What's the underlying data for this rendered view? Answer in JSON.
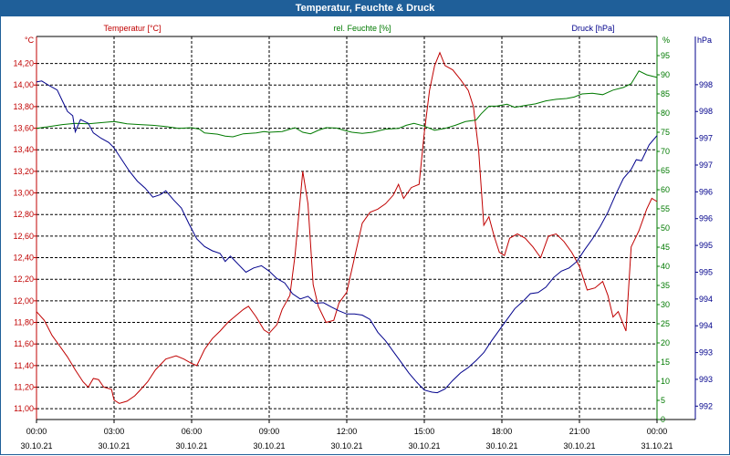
{
  "window": {
    "title": "Temperatur, Feuchte & Druck"
  },
  "colors": {
    "temperature": "#c00000",
    "humidity": "#007a00",
    "pressure": "#00008b",
    "grid": "#000000",
    "title_bar": "#1f5f99"
  },
  "chart_data": {
    "type": "line",
    "title": "Temperatur, Feuchte & Druck",
    "x": {
      "range_hours": [
        0,
        24
      ],
      "ticks": [
        {
          "h": 0,
          "time": "00:00",
          "date": "30.10.21"
        },
        {
          "h": 3,
          "time": "03:00",
          "date": "30.10.21"
        },
        {
          "h": 6,
          "time": "06:00",
          "date": "30.10.21"
        },
        {
          "h": 9,
          "time": "09:00",
          "date": "30.10.21"
        },
        {
          "h": 12,
          "time": "12:00",
          "date": "30.10.21"
        },
        {
          "h": 15,
          "time": "15:00",
          "date": "30.10.21"
        },
        {
          "h": 18,
          "time": "18:00",
          "date": "30.10.21"
        },
        {
          "h": 21,
          "time": "21:00",
          "date": "30.10.21"
        },
        {
          "h": 24,
          "time": "00:00",
          "date": "31.10.21"
        }
      ]
    },
    "axes": {
      "temperature": {
        "label": "Temperatur [°C]",
        "unit": "°C",
        "ylim": [
          10.9,
          14.45
        ],
        "ticks": [
          "11,00",
          "11,20",
          "11,40",
          "11,60",
          "11,80",
          "12,00",
          "12,20",
          "12,40",
          "12,60",
          "12,80",
          "13,00",
          "13,20",
          "13,40",
          "13,60",
          "13,80",
          "14,00",
          "14,20"
        ],
        "tick_values": [
          11.0,
          11.2,
          11.4,
          11.6,
          11.8,
          12.0,
          12.2,
          12.4,
          12.6,
          12.8,
          13.0,
          13.2,
          13.4,
          13.6,
          13.8,
          14.0,
          14.2
        ]
      },
      "humidity": {
        "label": "rel. Feuchte [%]",
        "unit": "%",
        "ylim": [
          0,
          100
        ],
        "ticks": [
          "0",
          "5",
          "10",
          "15",
          "20",
          "25",
          "30",
          "35",
          "40",
          "45",
          "50",
          "55",
          "60",
          "65",
          "70",
          "75",
          "80",
          "85",
          "90",
          "95"
        ],
        "tick_values": [
          0,
          5,
          10,
          15,
          20,
          25,
          30,
          35,
          40,
          45,
          50,
          55,
          60,
          65,
          70,
          75,
          80,
          85,
          90,
          95
        ]
      },
      "pressure": {
        "label": "Druck [hPa]",
        "unit": "hPa",
        "ylim": [
          991.75,
          998.9
        ],
        "ticks": [
          "992",
          "993",
          "993",
          "994",
          "994",
          "995",
          "995",
          "996",
          "996",
          "997",
          "997",
          "998",
          "998"
        ],
        "tick_values": [
          992.0,
          992.5,
          993.0,
          993.5,
          994.0,
          994.5,
          995.0,
          995.5,
          996.0,
          996.5,
          997.0,
          997.5,
          998.0
        ]
      }
    },
    "series": [
      {
        "name": "Temperatur [°C]",
        "axis": "temperature",
        "points": [
          [
            0.0,
            11.9
          ],
          [
            0.3,
            11.82
          ],
          [
            0.6,
            11.68
          ],
          [
            0.9,
            11.58
          ],
          [
            1.2,
            11.48
          ],
          [
            1.5,
            11.36
          ],
          [
            1.8,
            11.25
          ],
          [
            2.0,
            11.2
          ],
          [
            2.2,
            11.28
          ],
          [
            2.4,
            11.27
          ],
          [
            2.6,
            11.2
          ],
          [
            2.9,
            11.18
          ],
          [
            3.0,
            11.08
          ],
          [
            3.2,
            11.05
          ],
          [
            3.5,
            11.07
          ],
          [
            3.8,
            11.12
          ],
          [
            4.0,
            11.17
          ],
          [
            4.3,
            11.25
          ],
          [
            4.6,
            11.36
          ],
          [
            5.0,
            11.46
          ],
          [
            5.4,
            11.49
          ],
          [
            5.7,
            11.46
          ],
          [
            6.0,
            11.42
          ],
          [
            6.2,
            11.4
          ],
          [
            6.5,
            11.55
          ],
          [
            6.8,
            11.65
          ],
          [
            7.1,
            11.72
          ],
          [
            7.4,
            11.8
          ],
          [
            7.7,
            11.86
          ],
          [
            8.0,
            11.92
          ],
          [
            8.2,
            11.95
          ],
          [
            8.5,
            11.85
          ],
          [
            8.8,
            11.73
          ],
          [
            9.0,
            11.7
          ],
          [
            9.3,
            11.78
          ],
          [
            9.5,
            11.92
          ],
          [
            9.8,
            12.05
          ],
          [
            10.0,
            12.42
          ],
          [
            10.3,
            13.2
          ],
          [
            10.5,
            12.9
          ],
          [
            10.7,
            12.15
          ],
          [
            10.9,
            11.95
          ],
          [
            11.2,
            11.8
          ],
          [
            11.5,
            11.82
          ],
          [
            11.7,
            11.98
          ],
          [
            12.0,
            12.08
          ],
          [
            12.3,
            12.4
          ],
          [
            12.6,
            12.72
          ],
          [
            12.9,
            12.82
          ],
          [
            13.2,
            12.85
          ],
          [
            13.5,
            12.9
          ],
          [
            13.8,
            12.98
          ],
          [
            14.0,
            13.08
          ],
          [
            14.2,
            12.95
          ],
          [
            14.5,
            13.05
          ],
          [
            14.8,
            13.08
          ],
          [
            15.0,
            13.56
          ],
          [
            15.2,
            13.95
          ],
          [
            15.4,
            14.18
          ],
          [
            15.6,
            14.3
          ],
          [
            15.8,
            14.18
          ],
          [
            16.1,
            14.14
          ],
          [
            16.4,
            14.05
          ],
          [
            16.7,
            13.95
          ],
          [
            16.9,
            13.8
          ],
          [
            17.1,
            13.4
          ],
          [
            17.3,
            12.7
          ],
          [
            17.5,
            12.78
          ],
          [
            17.7,
            12.6
          ],
          [
            17.9,
            12.45
          ],
          [
            18.1,
            12.42
          ],
          [
            18.3,
            12.58
          ],
          [
            18.6,
            12.62
          ],
          [
            18.9,
            12.58
          ],
          [
            19.2,
            12.5
          ],
          [
            19.5,
            12.4
          ],
          [
            19.8,
            12.6
          ],
          [
            20.1,
            12.62
          ],
          [
            20.4,
            12.55
          ],
          [
            20.7,
            12.45
          ],
          [
            21.0,
            12.32
          ],
          [
            21.3,
            12.1
          ],
          [
            21.6,
            12.12
          ],
          [
            21.9,
            12.18
          ],
          [
            22.1,
            12.05
          ],
          [
            22.3,
            11.85
          ],
          [
            22.5,
            11.9
          ],
          [
            22.8,
            11.72
          ],
          [
            23.0,
            12.5
          ],
          [
            23.3,
            12.65
          ],
          [
            23.6,
            12.85
          ],
          [
            23.8,
            12.95
          ],
          [
            24.0,
            12.92
          ]
        ]
      },
      {
        "name": "rel. Feuchte [%]",
        "axis": "humidity",
        "points": [
          [
            0.0,
            76.0
          ],
          [
            0.5,
            76.5
          ],
          [
            1.0,
            77.0
          ],
          [
            1.5,
            77.3
          ],
          [
            2.0,
            77.2
          ],
          [
            2.5,
            77.5
          ],
          [
            3.0,
            77.8
          ],
          [
            3.5,
            77.2
          ],
          [
            4.0,
            77.0
          ],
          [
            4.5,
            76.8
          ],
          [
            5.0,
            76.5
          ],
          [
            5.5,
            76.0
          ],
          [
            6.0,
            76.2
          ],
          [
            6.3,
            75.8
          ],
          [
            6.5,
            74.8
          ],
          [
            7.0,
            74.5
          ],
          [
            7.3,
            74.0
          ],
          [
            7.6,
            73.8
          ],
          [
            8.0,
            74.6
          ],
          [
            8.5,
            74.8
          ],
          [
            8.8,
            75.2
          ],
          [
            9.0,
            75.0
          ],
          [
            9.5,
            75.2
          ],
          [
            9.8,
            75.8
          ],
          [
            10.0,
            76.2
          ],
          [
            10.3,
            75.0
          ],
          [
            10.6,
            74.6
          ],
          [
            10.9,
            75.5
          ],
          [
            11.2,
            76.2
          ],
          [
            11.6,
            76.1
          ],
          [
            11.9,
            75.5
          ],
          [
            12.2,
            75.0
          ],
          [
            12.6,
            74.7
          ],
          [
            13.0,
            75.0
          ],
          [
            13.5,
            75.8
          ],
          [
            14.0,
            76.0
          ],
          [
            14.3,
            76.8
          ],
          [
            14.6,
            77.3
          ],
          [
            15.0,
            76.6
          ],
          [
            15.4,
            75.5
          ],
          [
            15.8,
            76.0
          ],
          [
            16.2,
            76.8
          ],
          [
            16.6,
            77.8
          ],
          [
            17.0,
            78.2
          ],
          [
            17.2,
            79.8
          ],
          [
            17.5,
            81.8
          ],
          [
            17.8,
            81.8
          ],
          [
            18.2,
            82.3
          ],
          [
            18.5,
            81.5
          ],
          [
            18.9,
            82.0
          ],
          [
            19.3,
            82.4
          ],
          [
            19.7,
            83.2
          ],
          [
            20.1,
            83.6
          ],
          [
            20.5,
            83.8
          ],
          [
            20.8,
            84.2
          ],
          [
            21.1,
            85.0
          ],
          [
            21.5,
            85.2
          ],
          [
            21.9,
            84.8
          ],
          [
            22.3,
            86.0
          ],
          [
            22.7,
            86.7
          ],
          [
            23.0,
            87.7
          ],
          [
            23.3,
            91.0
          ],
          [
            23.6,
            90.0
          ],
          [
            24.0,
            89.3
          ]
        ]
      },
      {
        "name": "Druck [hPa]",
        "axis": "pressure",
        "points": [
          [
            0.0,
            998.05
          ],
          [
            0.2,
            998.07
          ],
          [
            0.5,
            997.98
          ],
          [
            0.8,
            997.9
          ],
          [
            1.0,
            997.7
          ],
          [
            1.2,
            997.5
          ],
          [
            1.4,
            997.42
          ],
          [
            1.5,
            997.12
          ],
          [
            1.7,
            997.35
          ],
          [
            2.0,
            997.28
          ],
          [
            2.2,
            997.1
          ],
          [
            2.5,
            997.0
          ],
          [
            2.8,
            996.92
          ],
          [
            3.0,
            996.82
          ],
          [
            3.3,
            996.6
          ],
          [
            3.6,
            996.38
          ],
          [
            3.9,
            996.2
          ],
          [
            4.2,
            996.07
          ],
          [
            4.5,
            995.9
          ],
          [
            4.8,
            995.95
          ],
          [
            5.0,
            996.02
          ],
          [
            5.3,
            995.85
          ],
          [
            5.6,
            995.7
          ],
          [
            5.9,
            995.4
          ],
          [
            6.2,
            995.12
          ],
          [
            6.5,
            994.98
          ],
          [
            6.8,
            994.9
          ],
          [
            7.1,
            994.85
          ],
          [
            7.3,
            994.7
          ],
          [
            7.5,
            994.8
          ],
          [
            7.8,
            994.65
          ],
          [
            8.1,
            994.5
          ],
          [
            8.4,
            994.58
          ],
          [
            8.7,
            994.62
          ],
          [
            9.0,
            994.52
          ],
          [
            9.3,
            994.38
          ],
          [
            9.6,
            994.3
          ],
          [
            9.9,
            994.1
          ],
          [
            10.2,
            994.0
          ],
          [
            10.5,
            994.05
          ],
          [
            10.8,
            993.92
          ],
          [
            11.1,
            993.93
          ],
          [
            11.4,
            993.85
          ],
          [
            11.7,
            993.78
          ],
          [
            12.0,
            993.72
          ],
          [
            12.3,
            993.72
          ],
          [
            12.6,
            993.7
          ],
          [
            12.9,
            993.62
          ],
          [
            13.2,
            993.38
          ],
          [
            13.5,
            993.22
          ],
          [
            13.8,
            993.02
          ],
          [
            14.1,
            992.82
          ],
          [
            14.4,
            992.62
          ],
          [
            14.7,
            992.45
          ],
          [
            15.0,
            992.3
          ],
          [
            15.3,
            992.26
          ],
          [
            15.5,
            992.25
          ],
          [
            15.8,
            992.32
          ],
          [
            16.1,
            992.48
          ],
          [
            16.4,
            992.62
          ],
          [
            16.7,
            992.72
          ],
          [
            17.0,
            992.85
          ],
          [
            17.3,
            993.0
          ],
          [
            17.6,
            993.22
          ],
          [
            17.9,
            993.42
          ],
          [
            18.2,
            993.62
          ],
          [
            18.5,
            993.82
          ],
          [
            18.8,
            993.95
          ],
          [
            19.1,
            994.1
          ],
          [
            19.4,
            994.12
          ],
          [
            19.7,
            994.22
          ],
          [
            20.0,
            994.4
          ],
          [
            20.3,
            994.52
          ],
          [
            20.6,
            994.58
          ],
          [
            20.9,
            994.7
          ],
          [
            21.2,
            994.92
          ],
          [
            21.5,
            995.12
          ],
          [
            21.8,
            995.35
          ],
          [
            22.1,
            995.62
          ],
          [
            22.4,
            995.95
          ],
          [
            22.7,
            996.25
          ],
          [
            23.0,
            996.42
          ],
          [
            23.2,
            996.6
          ],
          [
            23.4,
            996.58
          ],
          [
            23.7,
            996.88
          ],
          [
            24.0,
            997.05
          ]
        ]
      }
    ]
  }
}
